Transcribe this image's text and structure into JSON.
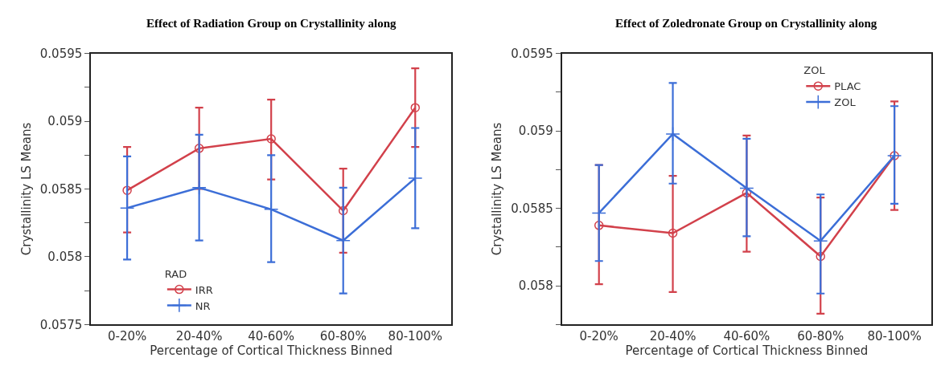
{
  "chart_data": [
    {
      "type": "line",
      "title": "Effect of Radiation Group on Crystallinity along",
      "xlabel": "Percentage of Cortical Thickness Binned",
      "ylabel": "Crystallinity LS Means",
      "legend_title": "RAD",
      "legend": "bottom left",
      "categories": [
        "0-20%",
        "20-40%",
        "40-60%",
        "60-80%",
        "80-100%"
      ],
      "ylim": [
        0.0575,
        0.0595
      ],
      "yticks": [
        0.0575,
        {
          "value": 0.05775,
          "label": null
        },
        0.058,
        {
          "value": 0.05825,
          "label": null
        },
        0.0585,
        {
          "value": 0.05875,
          "label": null
        },
        0.059,
        {
          "value": 0.05925,
          "label": null
        },
        0.0595
      ],
      "series": [
        {
          "name": "IRR",
          "color": "#d2414b",
          "marker": "circle",
          "values": [
            0.05849,
            0.0588,
            0.05887,
            0.05834,
            0.0591
          ],
          "errors": [
            [
              0.05818,
              0.05881
            ],
            [
              0.0585,
              0.0591
            ],
            [
              0.05857,
              0.05916
            ],
            [
              0.05803,
              0.05865
            ],
            [
              0.05881,
              0.05939
            ]
          ]
        },
        {
          "name": "NR",
          "color": "#3c6ed7",
          "marker": "cross",
          "values": [
            0.05836,
            0.05851,
            0.05835,
            0.05812,
            0.05858
          ],
          "errors": [
            [
              0.05798,
              0.05874
            ],
            [
              0.05812,
              0.0589
            ],
            [
              0.05796,
              0.05875
            ],
            [
              0.05773,
              0.05851
            ],
            [
              0.05821,
              0.05895
            ]
          ]
        }
      ]
    },
    {
      "type": "line",
      "title": "Effect of Zoledronate Group on Crystallinity along",
      "xlabel": "Percentage of Cortical Thickness Binned",
      "ylabel": "Crystallinity LS Means",
      "legend_title": "ZOL",
      "legend": "top right",
      "categories": [
        "0-20%",
        "20-40%",
        "40-60%",
        "60-80%",
        "80-100%"
      ],
      "ylim": [
        0.05775,
        0.0595
      ],
      "yticks": [
        {
          "value": 0.05775,
          "label": null
        },
        0.058,
        {
          "value": 0.05825,
          "label": null
        },
        0.0585,
        {
          "value": 0.05875,
          "label": null
        },
        0.059,
        {
          "value": 0.05925,
          "label": null
        },
        0.0595
      ],
      "series": [
        {
          "name": "PLAC",
          "color": "#d2414b",
          "marker": "circle",
          "values": [
            0.05839,
            0.05834,
            0.0586,
            0.05819,
            0.05884
          ],
          "errors": [
            [
              0.05801,
              0.05878
            ],
            [
              0.05796,
              0.05871
            ],
            [
              0.05822,
              0.05897
            ],
            [
              0.05782,
              0.05857
            ],
            [
              0.05849,
              0.05919
            ]
          ]
        },
        {
          "name": "ZOL",
          "color": "#3c6ed7",
          "marker": "cross",
          "values": [
            0.05847,
            0.05898,
            0.05863,
            0.05829,
            0.05884
          ],
          "errors": [
            [
              0.05816,
              0.05878
            ],
            [
              0.05866,
              0.05931
            ],
            [
              0.05832,
              0.05895
            ],
            [
              0.05795,
              0.05859
            ],
            [
              0.05853,
              0.05916
            ]
          ]
        }
      ]
    }
  ]
}
